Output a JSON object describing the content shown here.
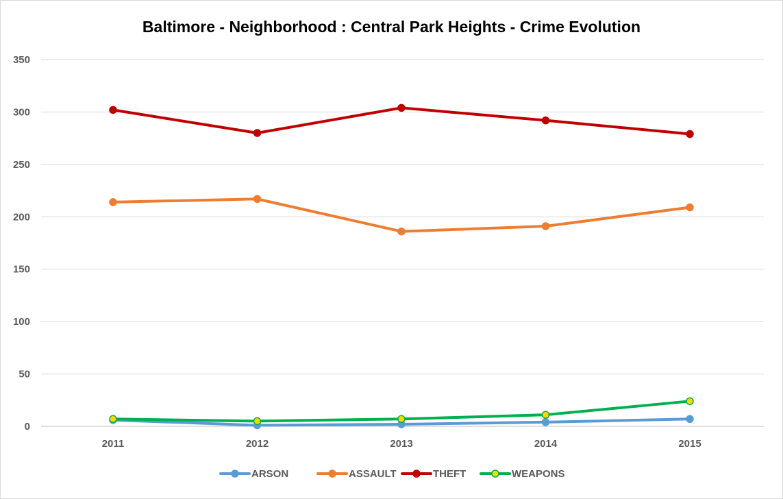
{
  "chart_data": {
    "type": "line",
    "title": "Baltimore - Neighborhood : Central Park Heights - Crime Evolution",
    "categories": [
      "2011",
      "2012",
      "2013",
      "2014",
      "2015"
    ],
    "ylim": [
      0,
      350
    ],
    "yticks": [
      0,
      50,
      100,
      150,
      200,
      250,
      300,
      350
    ],
    "grid": true,
    "legend_position": "bottom",
    "series": [
      {
        "name": "ARSON",
        "values": [
          6,
          1,
          2,
          4,
          7
        ],
        "color": "#5b9bd5",
        "marker_fill": "#5b9bd5"
      },
      {
        "name": "ASSAULT",
        "values": [
          214,
          217,
          186,
          191,
          209
        ],
        "color": "#ed7d31",
        "marker_fill": "#ed7d31"
      },
      {
        "name": "THEFT",
        "values": [
          302,
          280,
          304,
          292,
          279
        ],
        "color": "#c00000",
        "marker_fill": "#c00000"
      },
      {
        "name": "WEAPONS",
        "values": [
          7,
          5,
          7,
          11,
          24
        ],
        "color": "#00b050",
        "marker_fill": "#ffd700"
      }
    ]
  }
}
